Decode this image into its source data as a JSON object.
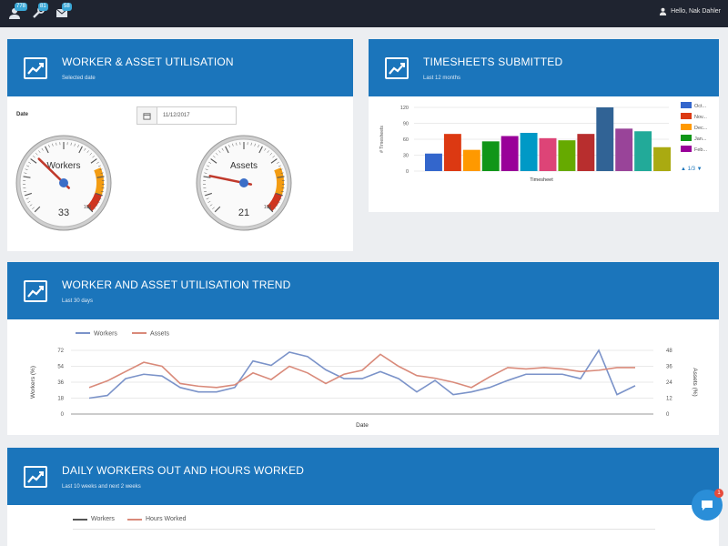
{
  "topbar": {
    "badges": [
      "778",
      "81",
      "58"
    ],
    "greeting": "Hello, Nak Dahler"
  },
  "utilisation": {
    "title": "WORKER & ASSET UTILISATION",
    "subtitle": "Selected date",
    "date_label": "Date",
    "date_value": "11/12/2017",
    "gauges": [
      {
        "label": "Workers",
        "value": 33,
        "max": 100,
        "scale_max_label": "100"
      },
      {
        "label": "Assets",
        "value": 21,
        "max": 100,
        "scale_max_label": "100"
      }
    ]
  },
  "timesheets": {
    "title": "TIMESHEETS SUBMITTED",
    "subtitle": "Last 12 months",
    "legend_pager": "1/3",
    "chart_data": {
      "type": "bar",
      "ylabel": "# Timesheets",
      "xlabel": "Timesheet",
      "ylim": [
        0,
        120
      ],
      "yticks": [
        "0",
        "30",
        "60",
        "90",
        "120"
      ],
      "series": [
        {
          "name": "Oct",
          "value": 33,
          "color": "#3366cc"
        },
        {
          "name": "Nov",
          "value": 70,
          "color": "#dc3912"
        },
        {
          "name": "Dec",
          "value": 40,
          "color": "#ff9900"
        },
        {
          "name": "Jan",
          "value": 56,
          "color": "#109618"
        },
        {
          "name": "Feb",
          "value": 66,
          "color": "#990099"
        },
        {
          "name": "",
          "value": 72,
          "color": "#0099c6"
        },
        {
          "name": "",
          "value": 62,
          "color": "#dd4477"
        },
        {
          "name": "",
          "value": 58,
          "color": "#66aa00"
        },
        {
          "name": "",
          "value": 70,
          "color": "#b82e2e"
        },
        {
          "name": "",
          "value": 120,
          "color": "#316395"
        },
        {
          "name": "",
          "value": 80,
          "color": "#994499"
        },
        {
          "name": "",
          "value": 75,
          "color": "#22aa99"
        },
        {
          "name": "",
          "value": 45,
          "color": "#aaaa11"
        }
      ],
      "legend_labels": [
        "Oct...",
        "Nov...",
        "Dec...",
        "Jan...",
        "Feb..."
      ]
    }
  },
  "trend": {
    "title": "WORKER AND ASSET UTILISATION TREND",
    "subtitle": "Last 30 days",
    "chart_data": {
      "type": "line",
      "xlabel": "Date",
      "ylabel_left": "Workers (%)",
      "ylabel_right": "Assets (%)",
      "yticks_left": [
        "0",
        "18",
        "36",
        "54",
        "72"
      ],
      "yticks_right": [
        "0",
        "12",
        "24",
        "36",
        "48"
      ],
      "ylim_left": [
        0,
        72
      ],
      "ylim_right": [
        0,
        48
      ],
      "series": [
        {
          "name": "Workers",
          "color": "#7b93c9",
          "axis": "left",
          "values": [
            18,
            21,
            40,
            45,
            43,
            30,
            25,
            25,
            30,
            60,
            55,
            70,
            65,
            50,
            40,
            40,
            48,
            40,
            25,
            38,
            22,
            25,
            30,
            38,
            45,
            45,
            45,
            40,
            72,
            22,
            32
          ]
        },
        {
          "name": "Assets",
          "color": "#d98a7a",
          "axis": "right",
          "values": [
            20,
            25,
            32,
            39,
            36,
            23,
            21,
            20,
            22,
            31,
            26,
            36,
            31,
            23,
            30,
            33,
            45,
            36,
            29,
            27,
            24,
            20,
            28,
            35,
            34,
            35,
            34,
            32,
            33,
            35,
            35
          ]
        }
      ]
    }
  },
  "daily": {
    "title": "DAILY WORKERS OUT AND HOURS WORKED",
    "subtitle": "Last 10 weeks and next 2 weeks",
    "legend": [
      {
        "name": "Workers",
        "color": "#555555"
      },
      {
        "name": "Hours Worked",
        "color": "#d98a7a"
      }
    ]
  },
  "chat": {
    "badge": "1"
  }
}
